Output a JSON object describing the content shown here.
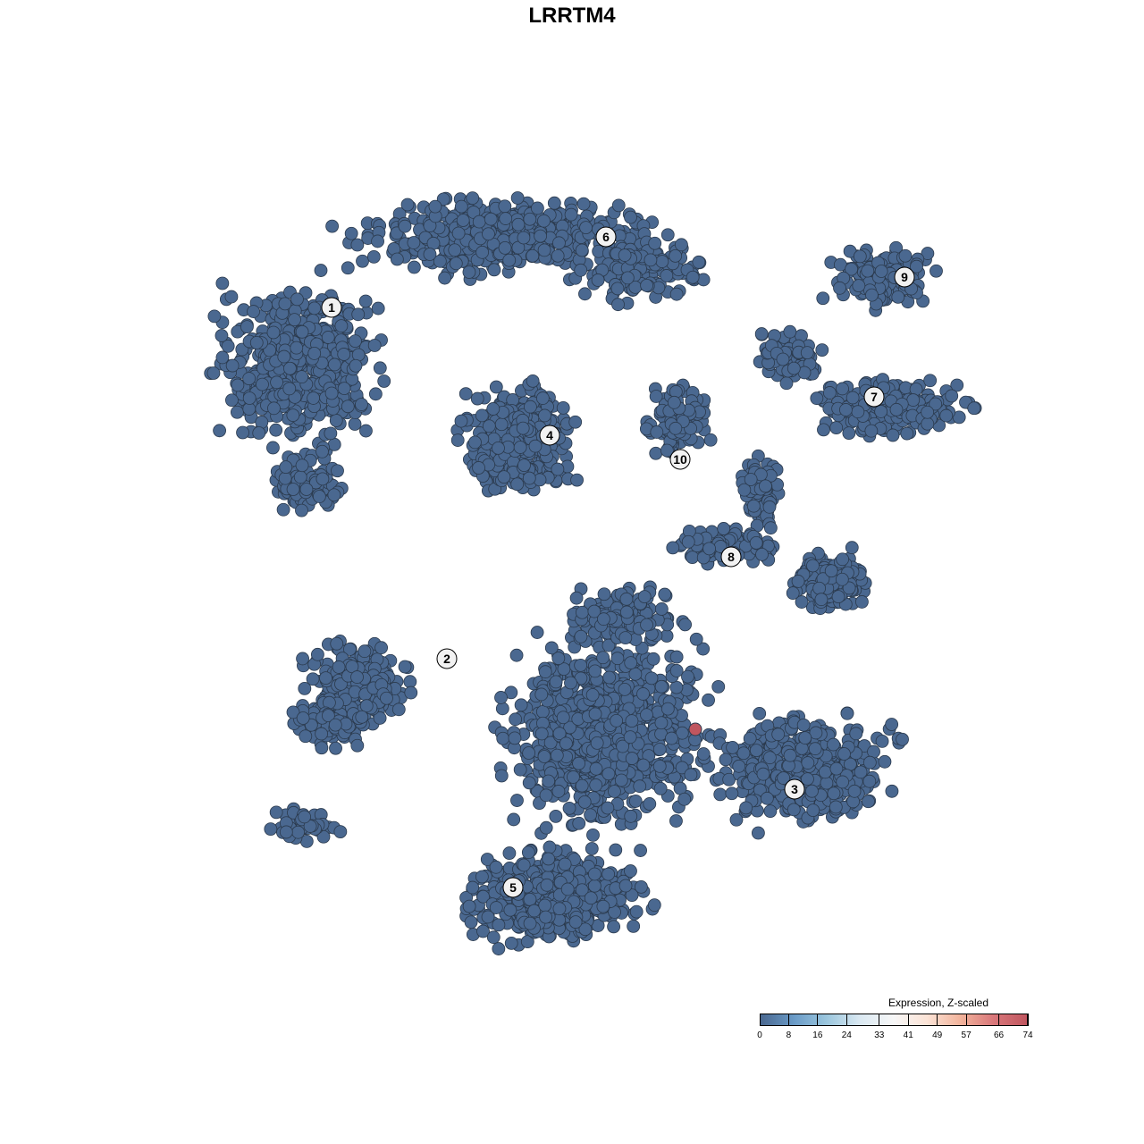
{
  "chart_data": {
    "type": "scatter",
    "title": "LRRTM4",
    "xlabel": "",
    "ylabel": "",
    "grid": false,
    "axes_visible": false,
    "point_color_default": "#4a6890",
    "point_stroke": "#2b3a4d",
    "highlight_point": {
      "color": "#c0565f",
      "cluster": "3"
    },
    "cluster_labels": [
      "1",
      "2",
      "3",
      "4",
      "5",
      "6",
      "7",
      "8",
      "9",
      "10"
    ],
    "legend": {
      "title": "Expression, Z-scaled",
      "placement": "bottom-right",
      "ticks": [
        "0",
        "8",
        "16",
        "24",
        "33",
        "41",
        "49",
        "57",
        "66",
        "74"
      ],
      "colors": [
        "#4a6890",
        "#6a9bc7",
        "#9cc7de",
        "#dbe9f2",
        "#f7f7f7",
        "#fbe3d6",
        "#f2b49c",
        "#d9777a",
        "#c0565f"
      ]
    }
  }
}
